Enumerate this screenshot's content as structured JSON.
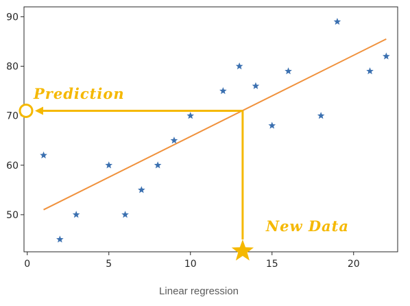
{
  "chart_data": {
    "type": "scatter",
    "caption": "Linear regression",
    "xlim": [
      -0.2,
      22.7
    ],
    "ylim": [
      42.5,
      92
    ],
    "xticks": [
      0,
      5,
      10,
      15,
      20
    ],
    "yticks": [
      50,
      60,
      70,
      80,
      90
    ],
    "grid": false,
    "series": [
      {
        "marker": "star",
        "color": "#3b70b0",
        "points": [
          {
            "x": 1,
            "y": 62
          },
          {
            "x": 2,
            "y": 45
          },
          {
            "x": 3,
            "y": 50
          },
          {
            "x": 5,
            "y": 60
          },
          {
            "x": 6,
            "y": 50
          },
          {
            "x": 7,
            "y": 55
          },
          {
            "x": 8,
            "y": 60
          },
          {
            "x": 9,
            "y": 65
          },
          {
            "x": 10,
            "y": 70
          },
          {
            "x": 12,
            "y": 75
          },
          {
            "x": 13,
            "y": 80
          },
          {
            "x": 14,
            "y": 76
          },
          {
            "x": 15,
            "y": 68
          },
          {
            "x": 16,
            "y": 79
          },
          {
            "x": 18,
            "y": 70
          },
          {
            "x": 19,
            "y": 89
          },
          {
            "x": 21,
            "y": 79
          },
          {
            "x": 22,
            "y": 82
          }
        ]
      }
    ],
    "regression_line": {
      "color": "#f0913c",
      "start": {
        "x": 1,
        "y": 51
      },
      "end": {
        "x": 22,
        "y": 85.5
      }
    },
    "annotations": {
      "color": "#f5b800",
      "new_data": {
        "label": "New Data",
        "x": 13.2
      },
      "prediction": {
        "label": "Prediction",
        "y": 71
      }
    }
  }
}
